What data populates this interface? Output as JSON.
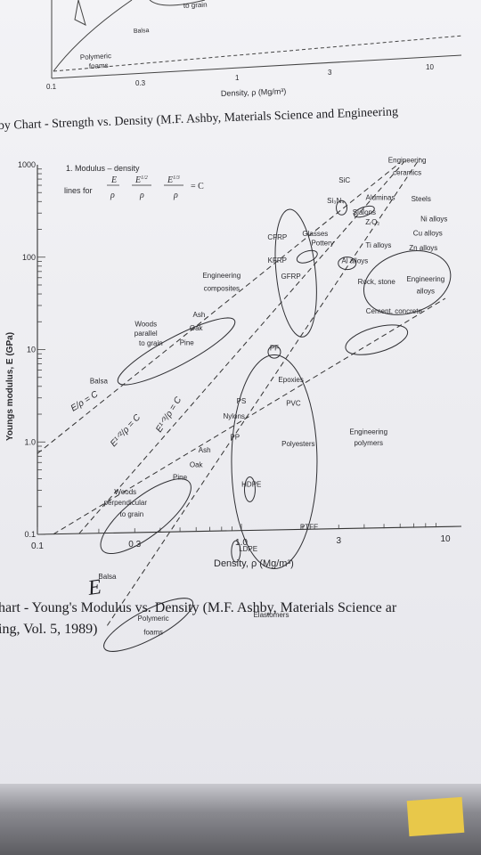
{
  "top_caption": "by Chart - Strength vs. Density (M.F. Ashby, Materials Science and Engineering",
  "top_fragment": {
    "x_ticks": [
      "0.1",
      "0.3",
      "1",
      "3",
      "10"
    ],
    "xlabel": "Density, ρ (Mg/m³)",
    "labels": [
      "Polymeric",
      "foams",
      "Balsa",
      "to grain"
    ]
  },
  "chart_data": {
    "type": "scatter",
    "title": "",
    "xlabel": "Density, ρ (Mg/m³)",
    "ylabel": "Youngs modulus, E (GPa)",
    "x_scale": "log",
    "y_scale": "log",
    "xlim": [
      0.1,
      10
    ],
    "ylim": [
      0.1,
      1000
    ],
    "x_tick_labels": [
      "0.1",
      "0.3",
      "1.0",
      "3",
      "10"
    ],
    "y_tick_labels": [
      "1000",
      "100",
      "10",
      "1.0",
      "0.1"
    ],
    "legend_title": "1. Modulus – density",
    "legend_lines_label": "lines for",
    "guide_line_labels": [
      "E/ρ = C",
      "E¹ᐟ²/ρ = C",
      "E¹ᐟ³/ρ = C"
    ],
    "material_labels": [
      {
        "text": "Engineering",
        "x": 6.5,
        "y": 900
      },
      {
        "text": "ceramics",
        "x": 6.5,
        "y": 660
      },
      {
        "text": "SiC",
        "x": 3.2,
        "y": 560
      },
      {
        "text": "Si₃N₄",
        "x": 2.9,
        "y": 340
      },
      {
        "text": "Aluminas",
        "x": 4.8,
        "y": 360
      },
      {
        "text": "Steels",
        "x": 7.6,
        "y": 340
      },
      {
        "text": "Sialons",
        "x": 4.0,
        "y": 250
      },
      {
        "text": "ZᵣO₂",
        "x": 4.4,
        "y": 195
      },
      {
        "text": "Ni alloys",
        "x": 8.8,
        "y": 205
      },
      {
        "text": "CFRP",
        "x": 1.5,
        "y": 140
      },
      {
        "text": "Glasses",
        "x": 2.3,
        "y": 150
      },
      {
        "text": "Pottery",
        "x": 2.5,
        "y": 118
      },
      {
        "text": "Cu alloys",
        "x": 8.2,
        "y": 145
      },
      {
        "text": "Ti alloys",
        "x": 4.7,
        "y": 110
      },
      {
        "text": "Zn alloys",
        "x": 7.8,
        "y": 100
      },
      {
        "text": "KFRP",
        "x": 1.5,
        "y": 78
      },
      {
        "text": "Al alloys",
        "x": 3.6,
        "y": 75
      },
      {
        "text": "GFRP",
        "x": 1.75,
        "y": 52
      },
      {
        "text": "Engineering",
        "x": 0.8,
        "y": 55
      },
      {
        "text": "composites",
        "x": 0.8,
        "y": 40
      },
      {
        "text": "Rock, stone",
        "x": 4.6,
        "y": 44
      },
      {
        "text": "Engineering",
        "x": 8.0,
        "y": 46
      },
      {
        "text": "alloys",
        "x": 8.0,
        "y": 34
      },
      {
        "text": "Cement, concrete",
        "x": 5.6,
        "y": 21
      },
      {
        "text": "Ash",
        "x": 0.62,
        "y": 21
      },
      {
        "text": "Woods",
        "x": 0.34,
        "y": 17
      },
      {
        "text": "parallel",
        "x": 0.34,
        "y": 13.5
      },
      {
        "text": "Oak",
        "x": 0.6,
        "y": 15
      },
      {
        "text": "to grain",
        "x": 0.36,
        "y": 10.5
      },
      {
        "text": "Pine",
        "x": 0.54,
        "y": 10.5
      },
      {
        "text": "PF",
        "x": 1.45,
        "y": 8.8
      },
      {
        "text": "Balsa",
        "x": 0.2,
        "y": 4.2
      },
      {
        "text": "Epoxies",
        "x": 1.75,
        "y": 4.0
      },
      {
        "text": "PS",
        "x": 1.0,
        "y": 2.4
      },
      {
        "text": "PVC",
        "x": 1.8,
        "y": 2.2
      },
      {
        "text": "Nylons",
        "x": 0.92,
        "y": 1.65
      },
      {
        "text": "PP",
        "x": 0.93,
        "y": 0.97
      },
      {
        "text": "Polyesters",
        "x": 1.9,
        "y": 0.8
      },
      {
        "text": "Engineering",
        "x": 4.2,
        "y": 1.05
      },
      {
        "text": "polymers",
        "x": 4.2,
        "y": 0.8
      },
      {
        "text": "Ash",
        "x": 0.66,
        "y": 0.72
      },
      {
        "text": "Oak",
        "x": 0.6,
        "y": 0.5
      },
      {
        "text": "Pine",
        "x": 0.5,
        "y": 0.37
      },
      {
        "text": "Woods",
        "x": 0.27,
        "y": 0.26
      },
      {
        "text": "perpendicular",
        "x": 0.27,
        "y": 0.2
      },
      {
        "text": "to grain",
        "x": 0.29,
        "y": 0.15
      },
      {
        "text": "HDPE",
        "x": 1.12,
        "y": 0.3
      },
      {
        "text": "PTFE",
        "x": 2.15,
        "y": 0.1
      },
      {
        "text": "LDPE",
        "x": 1.08,
        "y": 0.06
      },
      {
        "text": "Balsa",
        "x": 0.22,
        "y": 0.032
      },
      {
        "text": "Polymeric",
        "x": 0.37,
        "y": 0.011
      },
      {
        "text": "foams",
        "x": 0.37,
        "y": 0.0078
      },
      {
        "text": "Elastomers",
        "x": 1.4,
        "y": 0.0115
      }
    ],
    "grid": false,
    "legend_placement": "top-left"
  },
  "caption_line1": "hart - Young's Modulus vs. Density (M.F. Ashby, Materials Science ar",
  "caption_line2": "ing, Vol. 5, 1989)",
  "handwritten_mark": "E"
}
